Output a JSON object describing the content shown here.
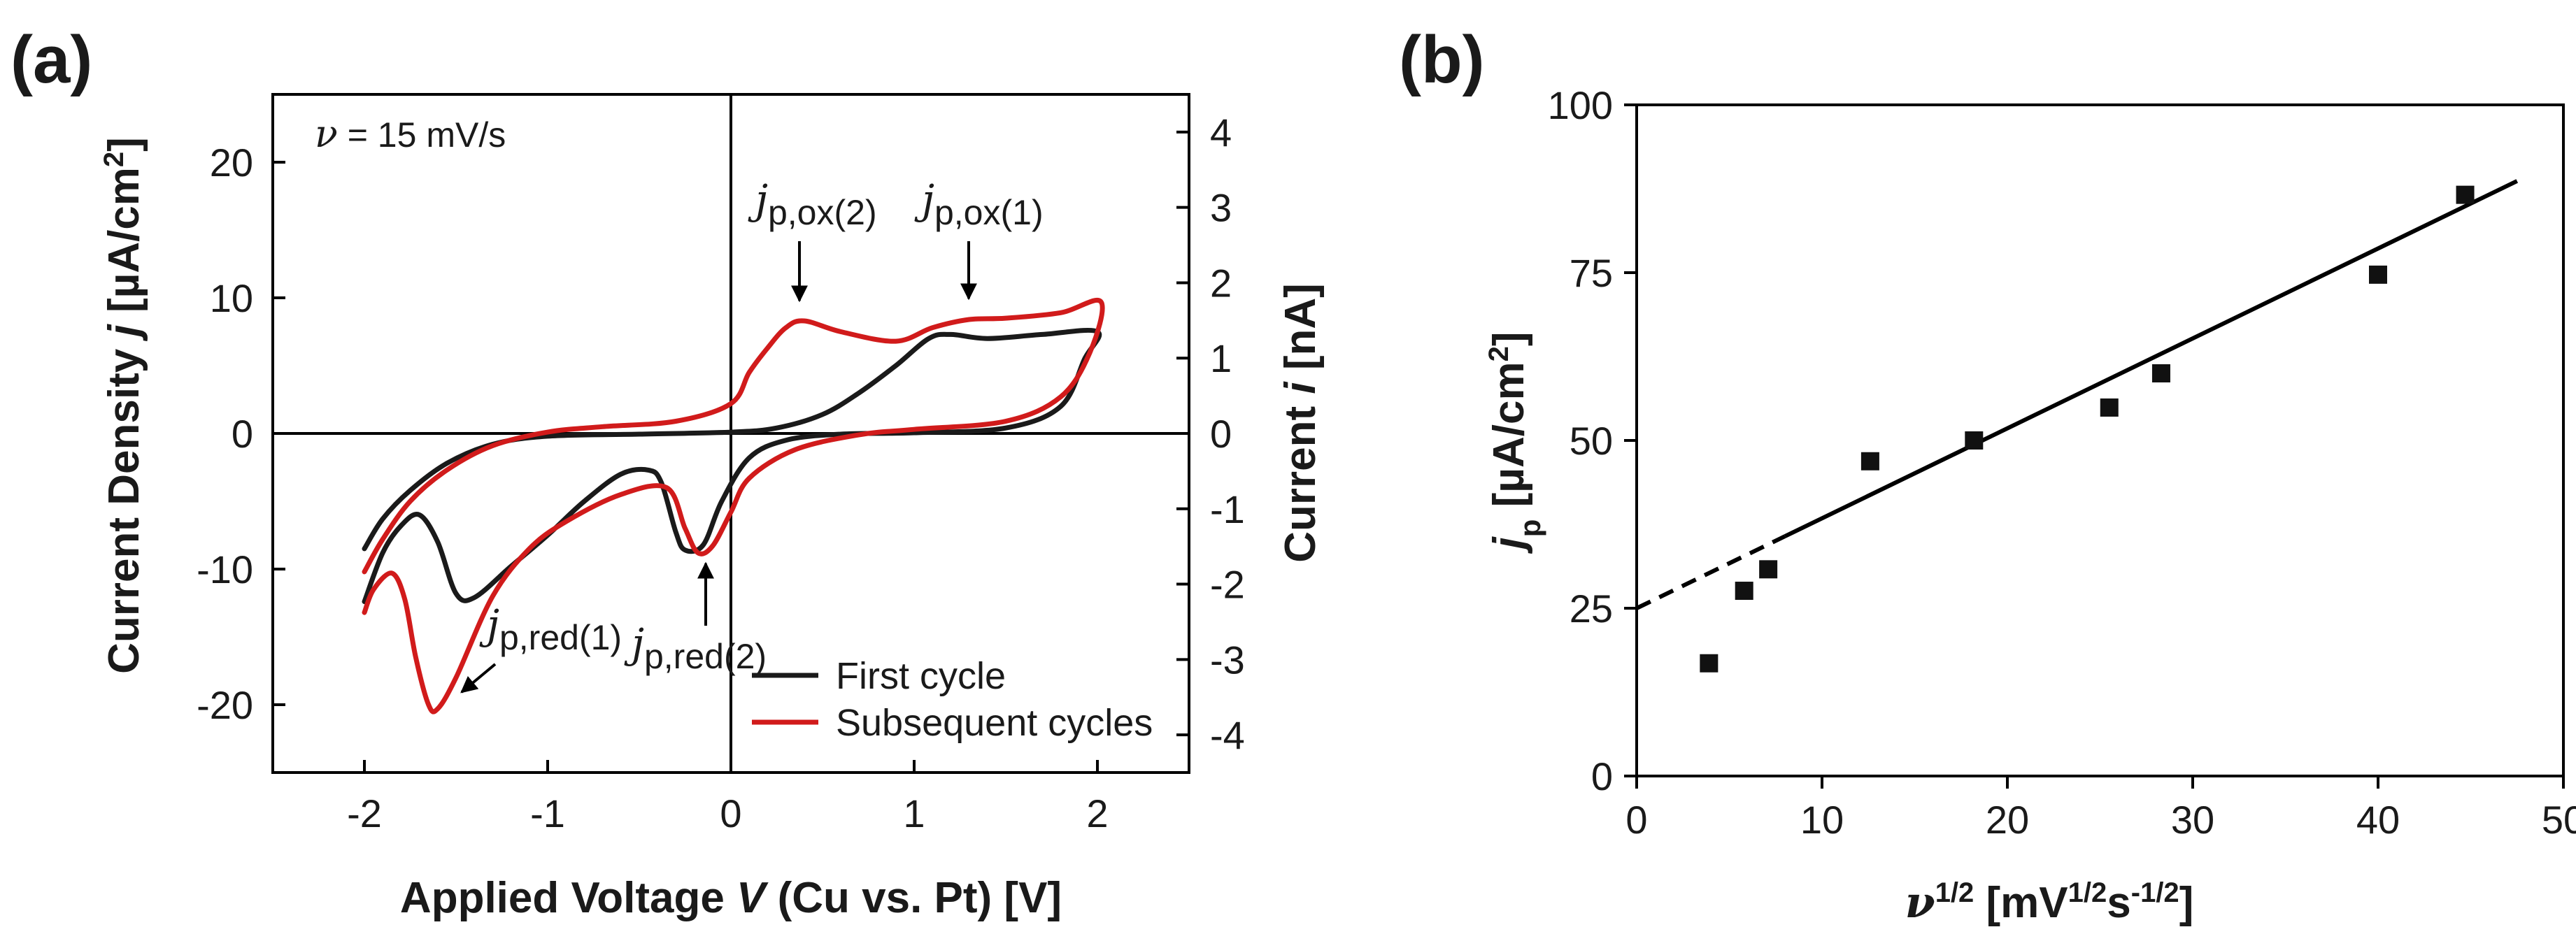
{
  "panels": {
    "a": {
      "label": "(a)",
      "rate_prefix": "ν",
      "rate_suffix": " = 15 mV/s",
      "y_left_title": {
        "a": "Current Density ",
        "b": "j",
        "c": " [µA/cm",
        "d": "2",
        "e": "]"
      },
      "y_right_title": {
        "a": "Current ",
        "b": "i",
        "c": " [nA]"
      },
      "x_title": {
        "a": "Applied Voltage ",
        "b": "V",
        "c": " (Cu vs. Pt) [V]"
      },
      "annotations": {
        "ox2": {
          "j": "j",
          "sub": "p,ox(2)"
        },
        "ox1": {
          "j": "j",
          "sub": "p,ox(1)"
        },
        "red1": {
          "j": "j",
          "sub": "p,red(1)"
        },
        "red2": {
          "j": "j",
          "sub": "p,red(2)"
        }
      }
    },
    "b": {
      "label": "(b)",
      "y_title": {
        "a": "j",
        "b": "p",
        "c": " [µA/cm",
        "d": "2",
        "e": "]"
      },
      "x_title": {
        "a": "ν",
        "b": "1/2",
        "c": " [mV",
        "d": "1/2",
        "e": "s",
        "f": "-1/2",
        "g": "]"
      }
    }
  },
  "chart_data": [
    {
      "type": "line",
      "title": "(a)",
      "xlabel": "Applied Voltage V (Cu vs. Pt) [V]",
      "ylabel": "Current Density j [µA/cm2]",
      "y2label": "Current i [nA]",
      "xlim": [
        -2.5,
        2.5
      ],
      "ylim": [
        -25,
        25
      ],
      "y2lim": [
        -4.5,
        4.5
      ],
      "xticks": [
        -2,
        -1,
        0,
        1,
        2
      ],
      "xtick_labels": [
        "-2",
        "-1",
        "0",
        "1",
        "2"
      ],
      "yticks": [
        20,
        10,
        0,
        -10,
        -20
      ],
      "ytick_labels": [
        "20",
        "10",
        "0",
        "-10",
        "-20"
      ],
      "y2ticks": [
        4,
        3,
        2,
        1,
        0,
        -1,
        -2,
        -3,
        -4
      ],
      "y2tick_labels": [
        "4",
        "3",
        "2",
        "1",
        "0",
        "-1",
        "-2",
        "-3",
        "-4"
      ],
      "legend": {
        "position": "bottom-right",
        "entries": [
          "First cycle",
          "Subsequent cycles"
        ]
      },
      "series": [
        {
          "name": "First cycle",
          "color": "#1a1a1a",
          "points": [
            [
              -2.0,
              -12.4
            ],
            [
              -1.9,
              -8.8
            ],
            [
              -1.8,
              -6.8
            ],
            [
              -1.7,
              -6.0
            ],
            [
              -1.6,
              -8.0
            ],
            [
              -1.5,
              -11.8
            ],
            [
              -1.4,
              -12.1
            ],
            [
              -1.2,
              -9.8
            ],
            [
              -1.0,
              -7.5
            ],
            [
              -0.8,
              -5.0
            ],
            [
              -0.6,
              -3.0
            ],
            [
              -0.45,
              -2.7
            ],
            [
              -0.38,
              -3.6
            ],
            [
              -0.3,
              -7.3
            ],
            [
              -0.25,
              -8.6
            ],
            [
              -0.15,
              -8.2
            ],
            [
              -0.05,
              -5.0
            ],
            [
              0.1,
              -1.8
            ],
            [
              0.3,
              -0.5
            ],
            [
              0.6,
              -0.05
            ],
            [
              1.0,
              0.05
            ],
            [
              1.5,
              0.4
            ],
            [
              1.8,
              2.0
            ],
            [
              1.93,
              5.5
            ],
            [
              2.0,
              7.5
            ],
            [
              1.7,
              7.3
            ],
            [
              1.4,
              7.0
            ],
            [
              1.2,
              7.3
            ],
            [
              1.08,
              7.0
            ],
            [
              0.9,
              5.0
            ],
            [
              0.7,
              3.0
            ],
            [
              0.5,
              1.4
            ],
            [
              0.25,
              0.4
            ],
            [
              0.0,
              0.1
            ],
            [
              -0.5,
              -0.05
            ],
            [
              -1.0,
              -0.2
            ],
            [
              -1.3,
              -0.8
            ],
            [
              -1.55,
              -2.2
            ],
            [
              -1.75,
              -4.2
            ],
            [
              -1.9,
              -6.3
            ],
            [
              -2.0,
              -8.5
            ]
          ]
        },
        {
          "name": "Subsequent cycles",
          "color": "#d11b1b",
          "points": [
            [
              -2.0,
              -13.2
            ],
            [
              -1.95,
              -11.5
            ],
            [
              -1.85,
              -10.3
            ],
            [
              -1.78,
              -12.2
            ],
            [
              -1.72,
              -16.5
            ],
            [
              -1.65,
              -20.0
            ],
            [
              -1.6,
              -20.3
            ],
            [
              -1.5,
              -18.0
            ],
            [
              -1.3,
              -12.0
            ],
            [
              -1.1,
              -8.5
            ],
            [
              -0.9,
              -6.5
            ],
            [
              -0.6,
              -4.5
            ],
            [
              -0.35,
              -4.0
            ],
            [
              -0.25,
              -7.0
            ],
            [
              -0.18,
              -8.8
            ],
            [
              -0.1,
              -8.3
            ],
            [
              0.0,
              -5.8
            ],
            [
              0.1,
              -3.3
            ],
            [
              0.35,
              -1.2
            ],
            [
              0.7,
              -0.1
            ],
            [
              1.0,
              0.3
            ],
            [
              1.5,
              0.9
            ],
            [
              1.8,
              2.7
            ],
            [
              1.96,
              6.0
            ],
            [
              2.02,
              9.7
            ],
            [
              1.8,
              8.9
            ],
            [
              1.5,
              8.5
            ],
            [
              1.3,
              8.4
            ],
            [
              1.1,
              7.8
            ],
            [
              0.9,
              6.8
            ],
            [
              0.6,
              7.5
            ],
            [
              0.4,
              8.3
            ],
            [
              0.3,
              7.8
            ],
            [
              0.2,
              6.3
            ],
            [
              0.1,
              4.5
            ],
            [
              0.0,
              2.2
            ],
            [
              -0.3,
              0.9
            ],
            [
              -0.7,
              0.5
            ],
            [
              -1.0,
              0.1
            ],
            [
              -1.3,
              -0.9
            ],
            [
              -1.55,
              -2.7
            ],
            [
              -1.75,
              -5.0
            ],
            [
              -1.9,
              -7.8
            ],
            [
              -2.0,
              -10.2
            ]
          ]
        }
      ]
    },
    {
      "type": "scatter",
      "title": "(b)",
      "xlabel": "ν1/2 [mV1/2s-1/2]",
      "ylabel": "jp [µA/cm2]",
      "xlim": [
        0,
        50
      ],
      "ylim": [
        0,
        100
      ],
      "xticks": [
        0,
        10,
        20,
        30,
        40,
        50
      ],
      "xtick_labels": [
        "0",
        "10",
        "20",
        "30",
        "40",
        "50"
      ],
      "yticks": [
        0,
        25,
        50,
        75,
        100
      ],
      "ytick_labels": [
        "0",
        "25",
        "50",
        "75",
        "100"
      ],
      "points": [
        [
          3.9,
          16.8
        ],
        [
          5.8,
          27.6
        ],
        [
          7.1,
          30.8
        ],
        [
          12.6,
          46.9
        ],
        [
          18.2,
          50.0
        ],
        [
          25.5,
          54.9
        ],
        [
          28.3,
          60.0
        ],
        [
          40.0,
          74.7
        ],
        [
          44.7,
          86.6
        ]
      ],
      "fit_line": {
        "intercept": 25.0,
        "slope": 1.34,
        "x_start": 0,
        "x_dash_end": 8,
        "x_end": 47.5
      }
    }
  ]
}
